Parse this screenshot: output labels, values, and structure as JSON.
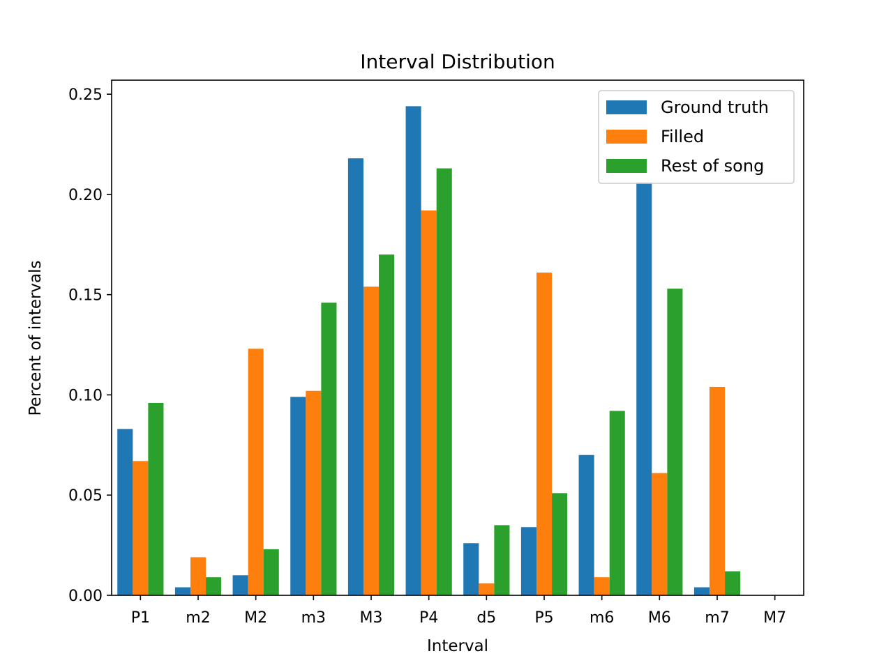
{
  "chart_data": {
    "type": "bar",
    "title": "Interval Distribution",
    "xlabel": "Interval",
    "ylabel": "Percent of intervals",
    "categories": [
      "P1",
      "m2",
      "M2",
      "m3",
      "M3",
      "P4",
      "d5",
      "P5",
      "m6",
      "M6",
      "m7",
      "M7"
    ],
    "ylim": [
      0,
      0.257
    ],
    "yticks": [
      "0.00",
      "0.05",
      "0.10",
      "0.15",
      "0.20",
      "0.25"
    ],
    "grid": false,
    "legend_position": "top-right",
    "series": [
      {
        "name": "Ground truth",
        "color": "#1f77b4",
        "values": [
          0.083,
          0.004,
          0.01,
          0.099,
          0.218,
          0.244,
          0.026,
          0.034,
          0.07,
          0.206,
          0.004,
          0.0
        ]
      },
      {
        "name": "Filled",
        "color": "#ff7f0e",
        "values": [
          0.067,
          0.019,
          0.123,
          0.102,
          0.154,
          0.192,
          0.006,
          0.161,
          0.009,
          0.061,
          0.104,
          0.0
        ]
      },
      {
        "name": "Rest of song",
        "color": "#2ca02c",
        "values": [
          0.096,
          0.009,
          0.023,
          0.146,
          0.17,
          0.213,
          0.035,
          0.051,
          0.092,
          0.153,
          0.012,
          0.0
        ]
      }
    ]
  }
}
